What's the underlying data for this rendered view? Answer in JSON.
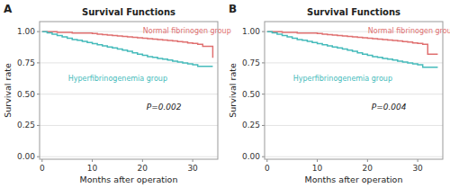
{
  "chart_data": [
    {
      "type": "step",
      "panel_label": "A",
      "title": "Survival Functions",
      "x_label": "Months after operation",
      "y_label": "Survival rate",
      "xlim": [
        -0.5,
        35
      ],
      "ylim": [
        -0.02,
        1.08
      ],
      "xticks": [
        0,
        10,
        20,
        30
      ],
      "yticks": [
        {
          "value": 0.0,
          "label": "0.00"
        },
        0.25,
        {
          "value": 0.5,
          "label": "0.50"
        },
        0.75,
        {
          "value": 1.0,
          "label": "1.00"
        }
      ],
      "grid": "y",
      "annotations": [
        {
          "text": "P=0.002"
        }
      ],
      "series": [
        {
          "name": "Normal fibrinogen group",
          "color": "#E07070",
          "x": [
            0,
            2,
            3,
            5,
            6,
            8,
            10,
            11,
            12,
            13,
            14,
            15,
            16,
            17,
            18,
            19,
            20,
            21,
            22,
            23,
            24,
            25,
            26,
            27,
            28,
            29,
            30,
            31,
            32,
            34
          ],
          "values": [
            1.0,
            1.0,
            0.993,
            0.993,
            0.988,
            0.988,
            0.984,
            0.98,
            0.976,
            0.973,
            0.969,
            0.965,
            0.962,
            0.958,
            0.955,
            0.951,
            0.947,
            0.944,
            0.94,
            0.937,
            0.933,
            0.929,
            0.926,
            0.92,
            0.916,
            0.91,
            0.905,
            0.898,
            0.883,
            0.79
          ]
        },
        {
          "name": "Hyperfibrinogenemia group",
          "color": "#45BBBB",
          "x": [
            0,
            1,
            2,
            3,
            4,
            5,
            6,
            7,
            8,
            9,
            10,
            11,
            12,
            13,
            14,
            15,
            16,
            17,
            18,
            19,
            20,
            21,
            22,
            23,
            24,
            25,
            26,
            27,
            28,
            29,
            30,
            31,
            34
          ],
          "values": [
            1.0,
            0.99,
            0.979,
            0.968,
            0.957,
            0.947,
            0.936,
            0.93,
            0.922,
            0.913,
            0.904,
            0.895,
            0.886,
            0.876,
            0.87,
            0.861,
            0.852,
            0.843,
            0.83,
            0.82,
            0.81,
            0.8,
            0.795,
            0.786,
            0.779,
            0.772,
            0.763,
            0.756,
            0.749,
            0.742,
            0.735,
            0.722,
            0.722
          ]
        }
      ]
    },
    {
      "type": "step",
      "panel_label": "B",
      "title": "Survival Functions",
      "x_label": "Months after operation",
      "y_label": "Survival rate",
      "xlim": [
        -0.5,
        35
      ],
      "ylim": [
        -0.02,
        1.08
      ],
      "xticks": [
        0,
        10,
        20,
        30
      ],
      "yticks": [
        {
          "value": 0.0,
          "label": "0.00"
        },
        0.25,
        {
          "value": 0.5,
          "label": "0.50"
        },
        0.75,
        {
          "value": 1.0,
          "label": "1.00"
        }
      ],
      "grid": "y",
      "annotations": [
        {
          "text": "P=0.004"
        }
      ],
      "series": [
        {
          "name": "Normal fibrinogen group",
          "color": "#E07070",
          "x": [
            0,
            2,
            3,
            5,
            6,
            8,
            10,
            11,
            12,
            13,
            14,
            15,
            16,
            17,
            18,
            19,
            20,
            21,
            22,
            23,
            24,
            25,
            26,
            27,
            28,
            29,
            30,
            31,
            32,
            34
          ],
          "values": [
            1.0,
            1.0,
            0.993,
            0.993,
            0.988,
            0.988,
            0.984,
            0.98,
            0.976,
            0.973,
            0.969,
            0.965,
            0.962,
            0.958,
            0.955,
            0.951,
            0.947,
            0.944,
            0.94,
            0.937,
            0.933,
            0.929,
            0.926,
            0.92,
            0.916,
            0.91,
            0.905,
            0.898,
            0.82,
            0.82
          ]
        },
        {
          "name": "Hyperfibrinogenemia group",
          "color": "#45BBBB",
          "x": [
            0,
            1,
            2,
            3,
            4,
            5,
            6,
            7,
            8,
            9,
            10,
            11,
            12,
            13,
            14,
            15,
            16,
            17,
            18,
            19,
            20,
            21,
            22,
            23,
            24,
            25,
            26,
            27,
            28,
            29,
            30,
            31,
            34
          ],
          "values": [
            1.0,
            0.99,
            0.979,
            0.968,
            0.957,
            0.947,
            0.936,
            0.93,
            0.922,
            0.913,
            0.904,
            0.895,
            0.886,
            0.876,
            0.87,
            0.861,
            0.852,
            0.843,
            0.83,
            0.82,
            0.81,
            0.8,
            0.795,
            0.786,
            0.779,
            0.772,
            0.763,
            0.756,
            0.749,
            0.742,
            0.735,
            0.716,
            0.716
          ]
        }
      ]
    }
  ]
}
